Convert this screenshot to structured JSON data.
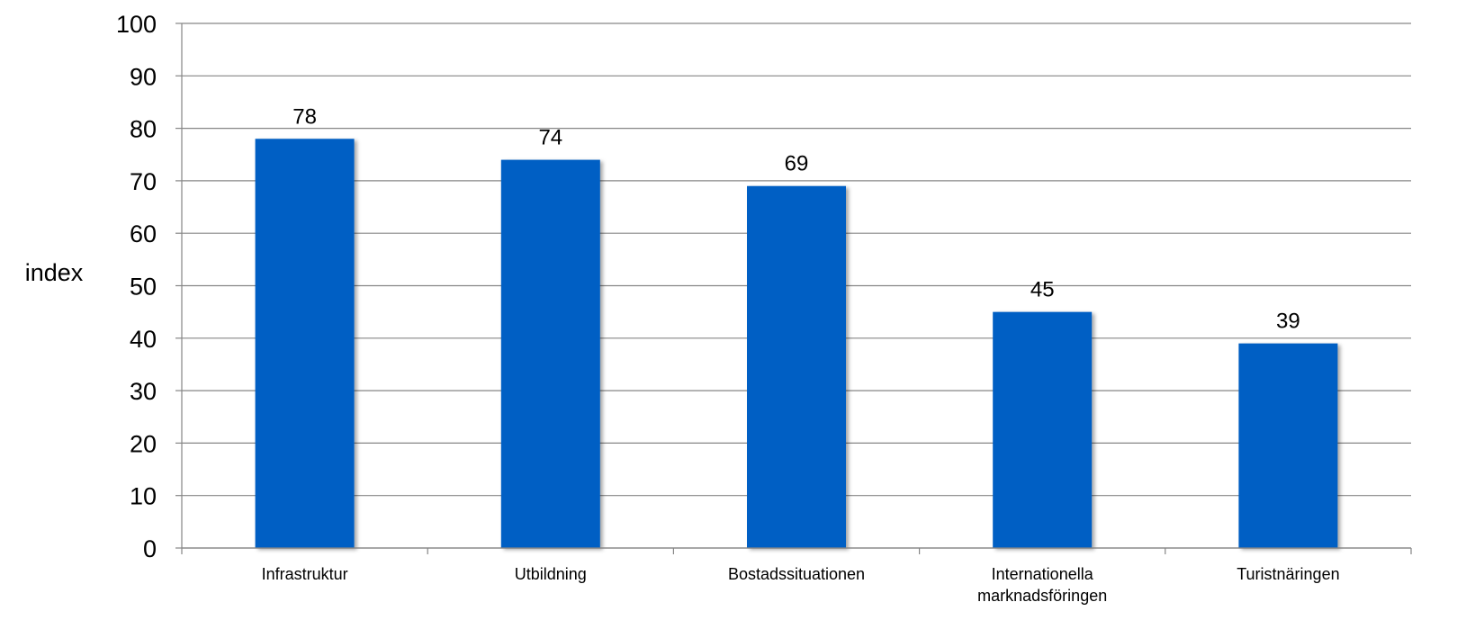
{
  "chart_data": {
    "type": "bar",
    "title": "",
    "xlabel": "",
    "ylabel": "index",
    "ylim": [
      0,
      100
    ],
    "yticks": [
      0,
      10,
      20,
      30,
      40,
      50,
      60,
      70,
      80,
      90,
      100
    ],
    "grid": true,
    "legend": "none",
    "categories": [
      [
        "Infrastruktur"
      ],
      [
        "Utbildning"
      ],
      [
        "Bostadssituationen"
      ],
      [
        "Internationella",
        "marknadsföringen"
      ],
      [
        "Turistnäringen"
      ]
    ],
    "values": [
      78,
      74,
      69,
      45,
      39
    ],
    "data_labels": [
      "78",
      "74",
      "69",
      "45",
      "39"
    ]
  },
  "colors": {
    "bar": "#005EC4",
    "grid": "#868686",
    "axis": "#868686",
    "text": "#000000"
  }
}
